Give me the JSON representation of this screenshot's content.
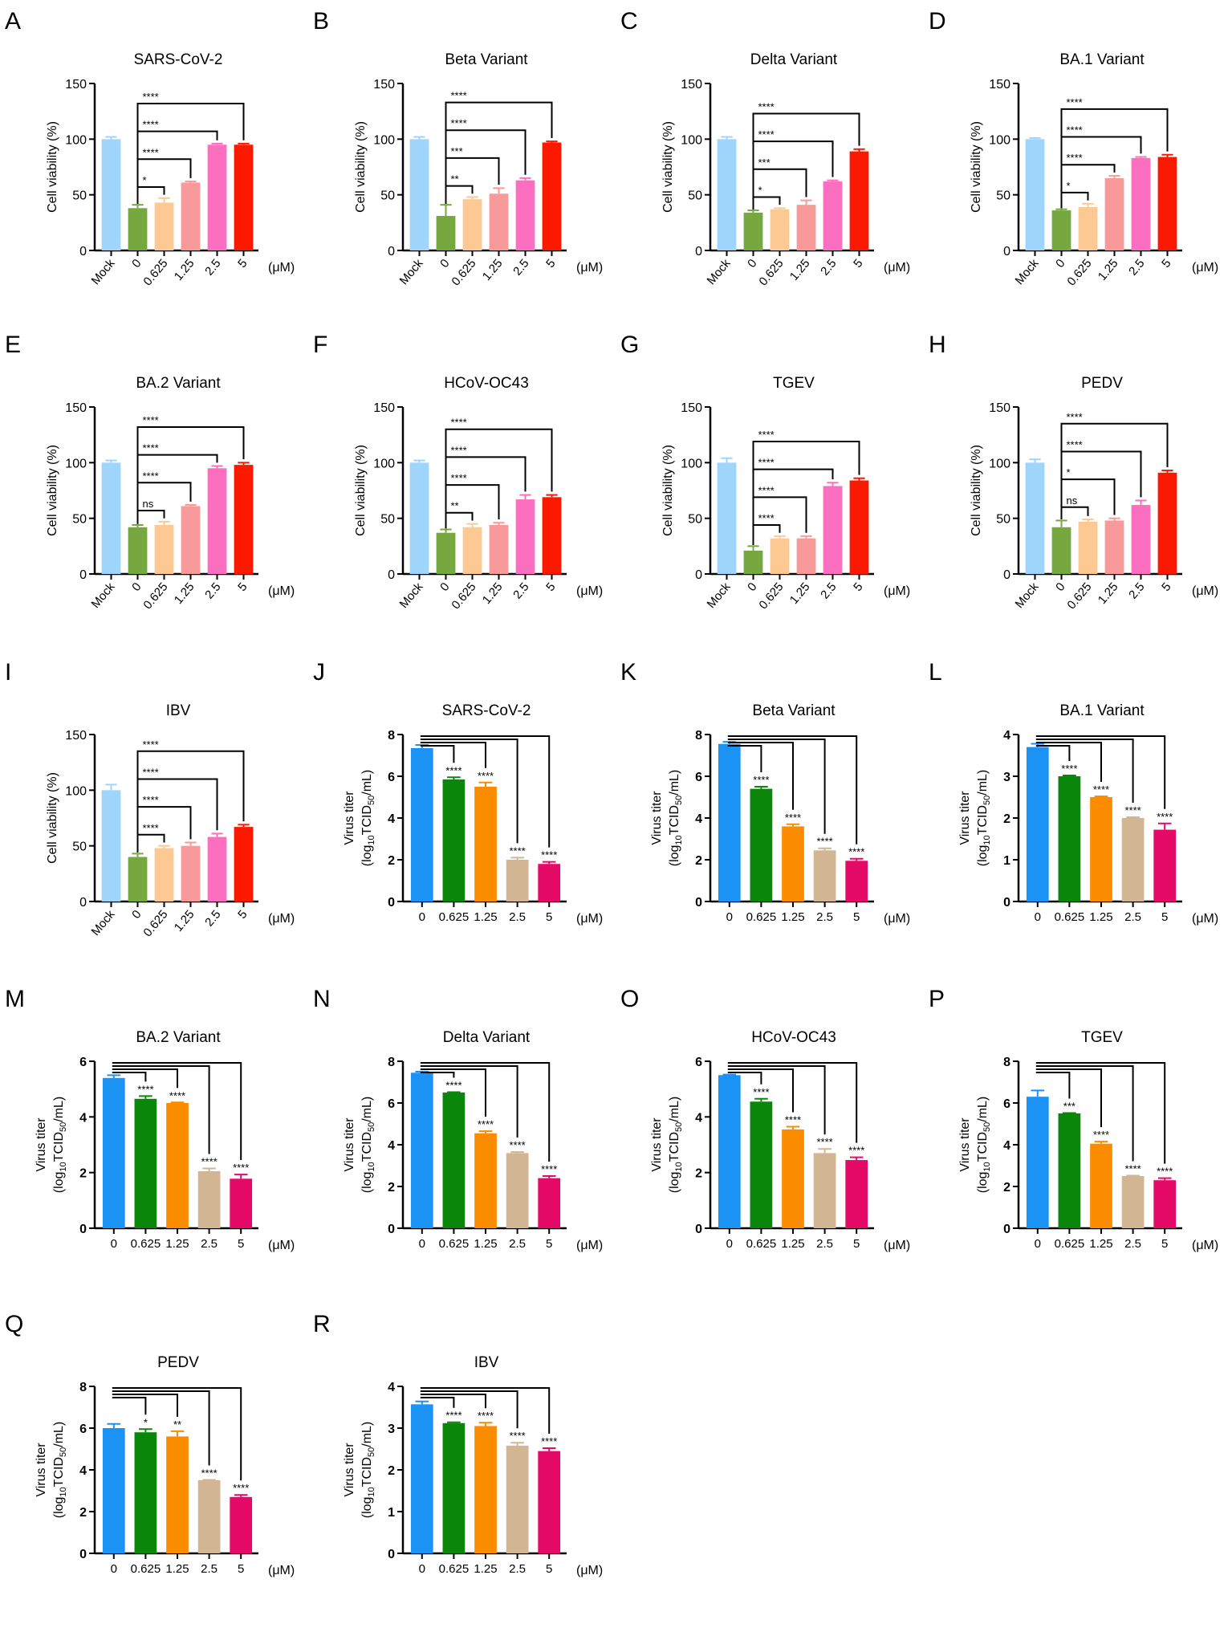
{
  "common": {
    "viability_ylabel": "Cell viability (%)",
    "titer_ylabel_line1": "Virus titer",
    "titer_ylabel_line2_pre": "(log",
    "titer_ylabel_sub1": "10",
    "titer_ylabel_mid": "TCID",
    "titer_ylabel_sub2": "50",
    "titer_ylabel_post": "/mL)",
    "unit": "(μM)"
  },
  "colors": {
    "viability": [
      "#9fd5fb",
      "#76a83f",
      "#fcc993",
      "#f99a9a",
      "#fb6ec0",
      "#fb1a00"
    ],
    "titer": [
      "#1a93f5",
      "#0a870a",
      "#fb8c00",
      "#d2b592",
      "#e50a67"
    ]
  },
  "chart_data": [
    {
      "panel": "A",
      "type": "bar",
      "kind": "viability",
      "title": "SARS-CoV-2",
      "ylabel": "Cell viability (%)",
      "xlabel": "(μM)",
      "categories": [
        "Mock",
        "0",
        "0.625",
        "1.25",
        "2.5",
        "5"
      ],
      "values": [
        100,
        38,
        43,
        61,
        95,
        95
      ],
      "errors": [
        2,
        3,
        4,
        1,
        1,
        1
      ],
      "significance": [
        "*",
        "****",
        "****",
        "****"
      ],
      "ylim": [
        0,
        150
      ],
      "yticks": [
        "0",
        "50",
        "100",
        "150"
      ]
    },
    {
      "panel": "B",
      "type": "bar",
      "kind": "viability",
      "title": "Beta Variant",
      "ylabel": "Cell viability (%)",
      "xlabel": "(μM)",
      "categories": [
        "Mock",
        "0",
        "0.625",
        "1.25",
        "2.5",
        "5"
      ],
      "values": [
        100,
        31,
        46,
        51,
        63,
        97
      ],
      "errors": [
        2,
        10,
        2,
        5,
        2,
        1
      ],
      "significance": [
        "**",
        "***",
        "****",
        "****"
      ],
      "ylim": [
        0,
        150
      ],
      "yticks": [
        "0",
        "50",
        "100",
        "150"
      ]
    },
    {
      "panel": "C",
      "type": "bar",
      "kind": "viability",
      "title": "Delta Variant",
      "ylabel": "Cell viability (%)",
      "xlabel": "(μM)",
      "categories": [
        "Mock",
        "0",
        "0.625",
        "1.25",
        "2.5",
        "5"
      ],
      "values": [
        100,
        34,
        37,
        41,
        62,
        89
      ],
      "errors": [
        2,
        2,
        1,
        4,
        1,
        2
      ],
      "significance": [
        "*",
        "***",
        "****",
        "****"
      ],
      "ylim": [
        0,
        150
      ],
      "yticks": [
        "0",
        "50",
        "100",
        "150"
      ]
    },
    {
      "panel": "D",
      "type": "bar",
      "kind": "viability",
      "title": "BA.1 Variant",
      "ylabel": "Cell viability (%)",
      "xlabel": "(μM)",
      "categories": [
        "Mock",
        "0",
        "0.625",
        "1.25",
        "2.5",
        "5"
      ],
      "values": [
        100,
        36,
        39,
        65,
        83,
        84
      ],
      "errors": [
        1,
        1,
        3,
        2,
        1,
        2
      ],
      "significance": [
        "*",
        "****",
        "****",
        "****"
      ],
      "ylim": [
        0,
        150
      ],
      "yticks": [
        "0",
        "50",
        "100",
        "150"
      ]
    },
    {
      "panel": "E",
      "type": "bar",
      "kind": "viability",
      "title": "BA.2 Variant",
      "ylabel": "Cell viability (%)",
      "xlabel": "(μM)",
      "categories": [
        "Mock",
        "0",
        "0.625",
        "1.25",
        "2.5",
        "5"
      ],
      "values": [
        100,
        42,
        44,
        61,
        95,
        98
      ],
      "errors": [
        2,
        2,
        3,
        1,
        2,
        2
      ],
      "significance": [
        "ns",
        "****",
        "****",
        "****"
      ],
      "ylim": [
        0,
        150
      ],
      "yticks": [
        "0",
        "50",
        "100",
        "150"
      ]
    },
    {
      "panel": "F",
      "type": "bar",
      "kind": "viability",
      "title": "HCoV-OC43",
      "ylabel": "Cell viability (%)",
      "xlabel": "(μM)",
      "categories": [
        "Mock",
        "0",
        "0.625",
        "1.25",
        "2.5",
        "5"
      ],
      "values": [
        100,
        37,
        42,
        44,
        67,
        69
      ],
      "errors": [
        2,
        3,
        3,
        2,
        4,
        2
      ],
      "significance": [
        "**",
        "****",
        "****",
        "****"
      ],
      "ylim": [
        0,
        150
      ],
      "yticks": [
        "0",
        "50",
        "100",
        "150"
      ]
    },
    {
      "panel": "G",
      "type": "bar",
      "kind": "viability",
      "title": "TGEV",
      "ylabel": "Cell viability (%)",
      "xlabel": "(μM)",
      "categories": [
        "Mock",
        "0",
        "0.625",
        "1.25",
        "2.5",
        "5"
      ],
      "values": [
        100,
        21,
        32,
        32,
        79,
        84
      ],
      "errors": [
        4,
        4,
        2,
        2,
        3,
        2
      ],
      "significance": [
        "****",
        "****",
        "****",
        "****"
      ],
      "ylim": [
        0,
        150
      ],
      "yticks": [
        "0",
        "50",
        "100",
        "150"
      ]
    },
    {
      "panel": "H",
      "type": "bar",
      "kind": "viability",
      "title": "PEDV",
      "ylabel": "Cell viability (%)",
      "xlabel": "(μM)",
      "categories": [
        "Mock",
        "0",
        "0.625",
        "1.25",
        "2.5",
        "5"
      ],
      "values": [
        100,
        42,
        47,
        48,
        62,
        91
      ],
      "errors": [
        3,
        6,
        2,
        2,
        4,
        2
      ],
      "significance": [
        "ns",
        "*",
        "****",
        "****"
      ],
      "ylim": [
        0,
        150
      ],
      "yticks": [
        "0",
        "50",
        "100",
        "150"
      ]
    },
    {
      "panel": "I",
      "type": "bar",
      "kind": "viability",
      "title": "IBV",
      "ylabel": "Cell viability (%)",
      "xlabel": "(μM)",
      "categories": [
        "Mock",
        "0",
        "0.625",
        "1.25",
        "2.5",
        "5"
      ],
      "values": [
        100,
        40,
        48,
        50,
        58,
        67
      ],
      "errors": [
        5,
        3,
        2,
        3,
        3,
        2
      ],
      "significance": [
        "****",
        "****",
        "****",
        "****"
      ],
      "ylim": [
        0,
        150
      ],
      "yticks": [
        "0",
        "50",
        "100",
        "150"
      ]
    },
    {
      "panel": "J",
      "type": "bar",
      "kind": "titer",
      "title": "SARS-CoV-2",
      "ylabel": "Virus titer (log10TCID50/mL)",
      "xlabel": "(μM)",
      "categories": [
        "0",
        "0.625",
        "1.25",
        "2.5",
        "5"
      ],
      "values": [
        7.35,
        5.85,
        5.5,
        2.0,
        1.8
      ],
      "errors": [
        0.15,
        0.1,
        0.2,
        0.1,
        0.1
      ],
      "significance": [
        "****",
        "****",
        "****",
        "****"
      ],
      "ylim": [
        0,
        8
      ],
      "yticks": [
        "0",
        "2",
        "4",
        "6",
        "8"
      ]
    },
    {
      "panel": "K",
      "type": "bar",
      "kind": "titer",
      "title": "Beta Variant",
      "ylabel": "Virus titer (log10TCID50/mL)",
      "xlabel": "(μM)",
      "categories": [
        "0",
        "0.625",
        "1.25",
        "2.5",
        "5"
      ],
      "values": [
        7.55,
        5.4,
        3.6,
        2.45,
        1.95
      ],
      "errors": [
        0.1,
        0.1,
        0.1,
        0.1,
        0.1
      ],
      "significance": [
        "****",
        "****",
        "****",
        "****"
      ],
      "ylim": [
        0,
        8
      ],
      "yticks": [
        "0",
        "2",
        "4",
        "6",
        "8"
      ]
    },
    {
      "panel": "L",
      "type": "bar",
      "kind": "titer",
      "title": "BA.1 Variant",
      "ylabel": "Virus titer (log10TCID50/mL)",
      "xlabel": "(μM)",
      "categories": [
        "0",
        "0.625",
        "1.25",
        "2.5",
        "5"
      ],
      "values": [
        3.7,
        3.0,
        2.5,
        2.0,
        1.72
      ],
      "errors": [
        0.08,
        0.02,
        0.02,
        0.02,
        0.15
      ],
      "significance": [
        "****",
        "****",
        "****",
        "****"
      ],
      "ylim": [
        0,
        4
      ],
      "yticks": [
        "0",
        "1",
        "2",
        "3",
        "4"
      ]
    },
    {
      "panel": "M",
      "type": "bar",
      "kind": "titer",
      "title": "BA.2 Variant",
      "ylabel": "Virus titer (log10TCID50/mL)",
      "xlabel": "(μM)",
      "categories": [
        "0",
        "0.625",
        "1.25",
        "2.5",
        "5"
      ],
      "values": [
        5.4,
        4.65,
        4.5,
        2.05,
        1.78
      ],
      "errors": [
        0.1,
        0.1,
        0.02,
        0.1,
        0.15
      ],
      "significance": [
        "****",
        "****",
        "****",
        "****"
      ],
      "ylim": [
        0,
        6
      ],
      "yticks": [
        "0",
        "2",
        "4",
        "6"
      ]
    },
    {
      "panel": "N",
      "type": "bar",
      "kind": "titer",
      "title": "Delta Variant",
      "ylabel": "Virus titer (log10TCID50/mL)",
      "xlabel": "(μM)",
      "categories": [
        "0",
        "0.625",
        "1.25",
        "2.5",
        "5"
      ],
      "values": [
        7.45,
        6.5,
        4.55,
        3.6,
        2.4
      ],
      "errors": [
        0.05,
        0.02,
        0.1,
        0.05,
        0.1
      ],
      "significance": [
        "****",
        "****",
        "****",
        "****"
      ],
      "ylim": [
        0,
        8
      ],
      "yticks": [
        "0",
        "2",
        "4",
        "6",
        "8"
      ]
    },
    {
      "panel": "O",
      "type": "bar",
      "kind": "titer",
      "title": "HCoV-OC43",
      "ylabel": "Virus titer (log10TCID50/mL)",
      "xlabel": "(μM)",
      "categories": [
        "0",
        "0.625",
        "1.25",
        "2.5",
        "5"
      ],
      "values": [
        5.5,
        4.55,
        3.55,
        2.7,
        2.45
      ],
      "errors": [
        0.02,
        0.1,
        0.1,
        0.15,
        0.1
      ],
      "significance": [
        "****",
        "****",
        "****",
        "****"
      ],
      "ylim": [
        0,
        6
      ],
      "yticks": [
        "0",
        "2",
        "4",
        "6"
      ]
    },
    {
      "panel": "P",
      "type": "bar",
      "kind": "titer",
      "title": "TGEV",
      "ylabel": "Virus titer (log10TCID50/mL)",
      "xlabel": "(μM)",
      "categories": [
        "0",
        "0.625",
        "1.25",
        "2.5",
        "5"
      ],
      "values": [
        6.3,
        5.5,
        4.05,
        2.5,
        2.3
      ],
      "errors": [
        0.3,
        0.02,
        0.1,
        0.02,
        0.1
      ],
      "significance": [
        "***",
        "****",
        "****",
        "****"
      ],
      "ylim": [
        0,
        8
      ],
      "yticks": [
        "0",
        "2",
        "4",
        "6",
        "8"
      ]
    },
    {
      "panel": "Q",
      "type": "bar",
      "kind": "titer",
      "title": "PEDV",
      "ylabel": "Virus titer (log10TCID50/mL)",
      "xlabel": "(μM)",
      "categories": [
        "0",
        "0.625",
        "1.25",
        "2.5",
        "5"
      ],
      "values": [
        6.0,
        5.8,
        5.6,
        3.5,
        2.7
      ],
      "errors": [
        0.2,
        0.15,
        0.25,
        0.02,
        0.1
      ],
      "significance": [
        "*",
        "**",
        "****",
        "****"
      ],
      "ylim": [
        0,
        8
      ],
      "yticks": [
        "0",
        "2",
        "4",
        "6",
        "8"
      ]
    },
    {
      "panel": "R",
      "type": "bar",
      "kind": "titer",
      "title": "IBV",
      "ylabel": "Virus titer (log10TCID50/mL)",
      "xlabel": "(μM)",
      "categories": [
        "0",
        "0.625",
        "1.25",
        "2.5",
        "5"
      ],
      "values": [
        3.57,
        3.12,
        3.05,
        2.58,
        2.45
      ],
      "errors": [
        0.07,
        0.02,
        0.08,
        0.07,
        0.07
      ],
      "significance": [
        "****",
        "****",
        "****",
        "****"
      ],
      "ylim": [
        0,
        4
      ],
      "yticks": [
        "0",
        "1",
        "2",
        "3",
        "4"
      ]
    }
  ]
}
